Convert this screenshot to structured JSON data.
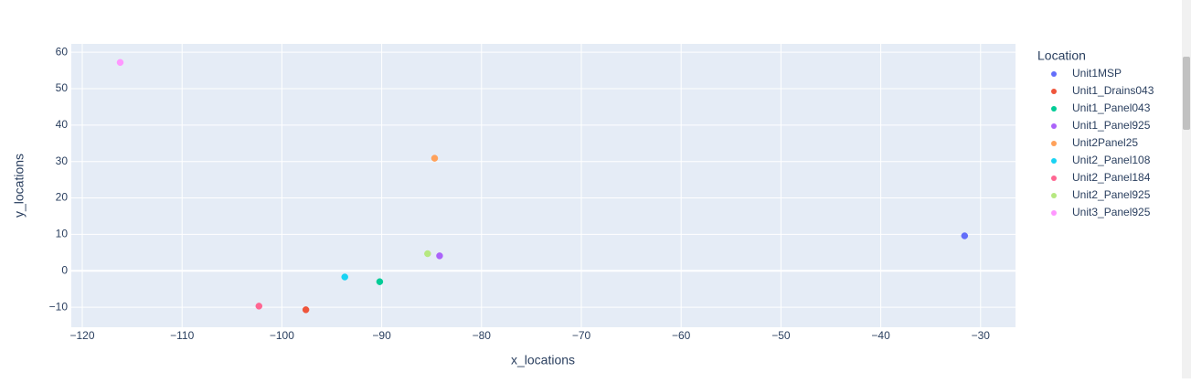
{
  "chart_data": {
    "type": "scatter",
    "x_label": "x_locations",
    "y_label": "y_locations",
    "legend_title": "Location",
    "xlim": [
      -121.1,
      -26.5
    ],
    "ylim": [
      -15.5,
      62.3
    ],
    "xticks": [
      {
        "value": -120,
        "label": "−120"
      },
      {
        "value": -110,
        "label": "−110"
      },
      {
        "value": -100,
        "label": "−100"
      },
      {
        "value": -90,
        "label": "−90"
      },
      {
        "value": -80,
        "label": "−80"
      },
      {
        "value": -70,
        "label": "−70"
      },
      {
        "value": -60,
        "label": "−60"
      },
      {
        "value": -50,
        "label": "−50"
      },
      {
        "value": -40,
        "label": "−40"
      },
      {
        "value": -30,
        "label": "−30"
      }
    ],
    "yticks": [
      {
        "value": -10,
        "label": "−10"
      },
      0,
      10,
      20,
      30,
      40,
      50,
      60
    ],
    "grid": true,
    "legend": "right",
    "series": [
      {
        "name": "Unit1MSP",
        "color": "#636efa",
        "x": [
          -31.6
        ],
        "y": [
          9.6
        ]
      },
      {
        "name": "Unit1_Drains043",
        "color": "#EF553B",
        "x": [
          -97.6
        ],
        "y": [
          -10.7
        ]
      },
      {
        "name": "Unit1_Panel043",
        "color": "#00cc96",
        "x": [
          -90.2
        ],
        "y": [
          -3.0
        ]
      },
      {
        "name": "Unit1_Panel925",
        "color": "#ab63fa",
        "x": [
          -84.2
        ],
        "y": [
          4.1
        ]
      },
      {
        "name": "Unit2Panel25",
        "color": "#FFA15A",
        "x": [
          -84.7
        ],
        "y": [
          30.9
        ]
      },
      {
        "name": "Unit2_Panel108",
        "color": "#19d3f3",
        "x": [
          -93.7
        ],
        "y": [
          -1.7
        ]
      },
      {
        "name": "Unit2_Panel184",
        "color": "#FF6692",
        "x": [
          -102.3
        ],
        "y": [
          -9.7
        ]
      },
      {
        "name": "Unit2_Panel925",
        "color": "#B6E880",
        "x": [
          -85.4
        ],
        "y": [
          4.7
        ]
      },
      {
        "name": "Unit3_Panel925",
        "color": "#FF97FF",
        "x": [
          -116.2
        ],
        "y": [
          57.2
        ]
      }
    ]
  }
}
